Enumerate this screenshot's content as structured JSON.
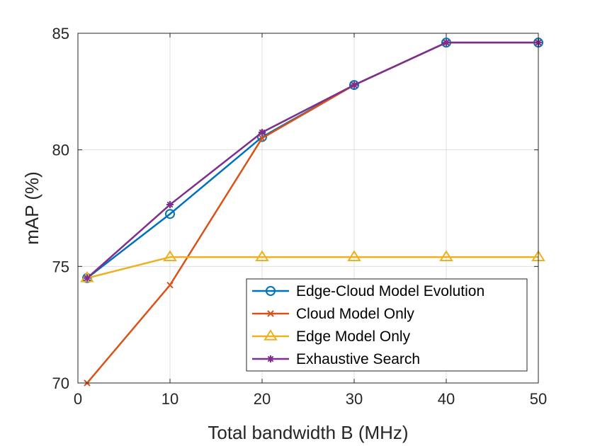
{
  "chart_data": {
    "type": "line",
    "title": "",
    "xlabel": "Total bandwidth B (MHz)",
    "ylabel": "mAP (%)",
    "xlim": [
      0,
      50
    ],
    "ylim": [
      70,
      85
    ],
    "xticks": [
      0,
      10,
      20,
      30,
      40,
      50
    ],
    "yticks": [
      70,
      75,
      80,
      85
    ],
    "grid": true,
    "legend_position": "bottom-right",
    "x": [
      1,
      10,
      20,
      30,
      40,
      50
    ],
    "series": [
      {
        "name": "Edge-Cloud Model Evolution",
        "marker": "circle",
        "color": "#0072BD",
        "values": [
          74.5,
          77.25,
          80.55,
          82.78,
          84.6,
          84.6
        ]
      },
      {
        "name": "Cloud Model Only",
        "marker": "x",
        "color": "#D95319",
        "values": [
          70.0,
          74.2,
          80.5,
          82.78,
          84.6,
          84.6
        ]
      },
      {
        "name": "Edge Model Only",
        "marker": "triangle",
        "color": "#EDB120",
        "values": [
          74.5,
          75.4,
          75.4,
          75.4,
          75.4,
          75.4
        ]
      },
      {
        "name": "Exhaustive Search",
        "marker": "asterisk",
        "color": "#7E2F8E",
        "values": [
          74.5,
          77.65,
          80.75,
          82.78,
          84.6,
          84.6
        ]
      }
    ]
  }
}
